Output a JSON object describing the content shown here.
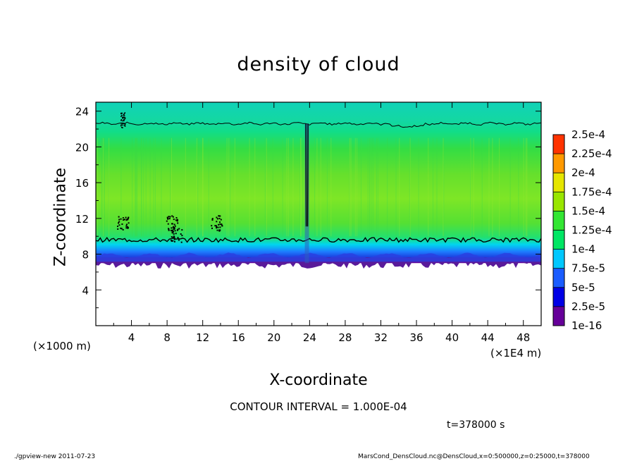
{
  "chart_data": {
    "type": "heatmap",
    "title": "density of cloud",
    "xlabel": "X-coordinate",
    "ylabel": "Z-coordinate",
    "x_scale_label": "(×1E4 m)",
    "y_scale_label": "(×1000 m)",
    "xlim": [
      0,
      50
    ],
    "ylim": [
      0,
      25
    ],
    "x_ticks": [
      4,
      8,
      12,
      16,
      20,
      24,
      28,
      32,
      36,
      40,
      44,
      48
    ],
    "y_ticks": [
      4,
      8,
      12,
      16,
      20,
      24
    ],
    "colorbar": {
      "levels": [
        "1e-16",
        "2.5e-5",
        "5e-5",
        "7.5e-5",
        "1e-4",
        "1.25e-4",
        "1.5e-4",
        "1.75e-4",
        "2e-4",
        "2.25e-4",
        "2.5e-4"
      ],
      "colors": [
        "#660099",
        "#0000e6",
        "#1a5cff",
        "#00c8ff",
        "#00e664",
        "#33e633",
        "#99e600",
        "#e6e600",
        "#ff9900",
        "#ff3300",
        "#ff9999"
      ]
    },
    "cloud_layer": {
      "bottom_z": 7,
      "top_z": 23,
      "contour_level": "1e-4",
      "contour_lower_z": 9.6,
      "contour_upper_z": 22.6,
      "column_x": 23.7
    },
    "contour_interval": "CONTOUR INTERVAL = 1.000E-04",
    "time": "t=378000 s"
  },
  "footer": {
    "left": "./gpview-new   2011-07-23",
    "right": "MarsCond_DensCloud.nc@DensCloud,x=0:500000,z=0:25000,t=378000"
  }
}
